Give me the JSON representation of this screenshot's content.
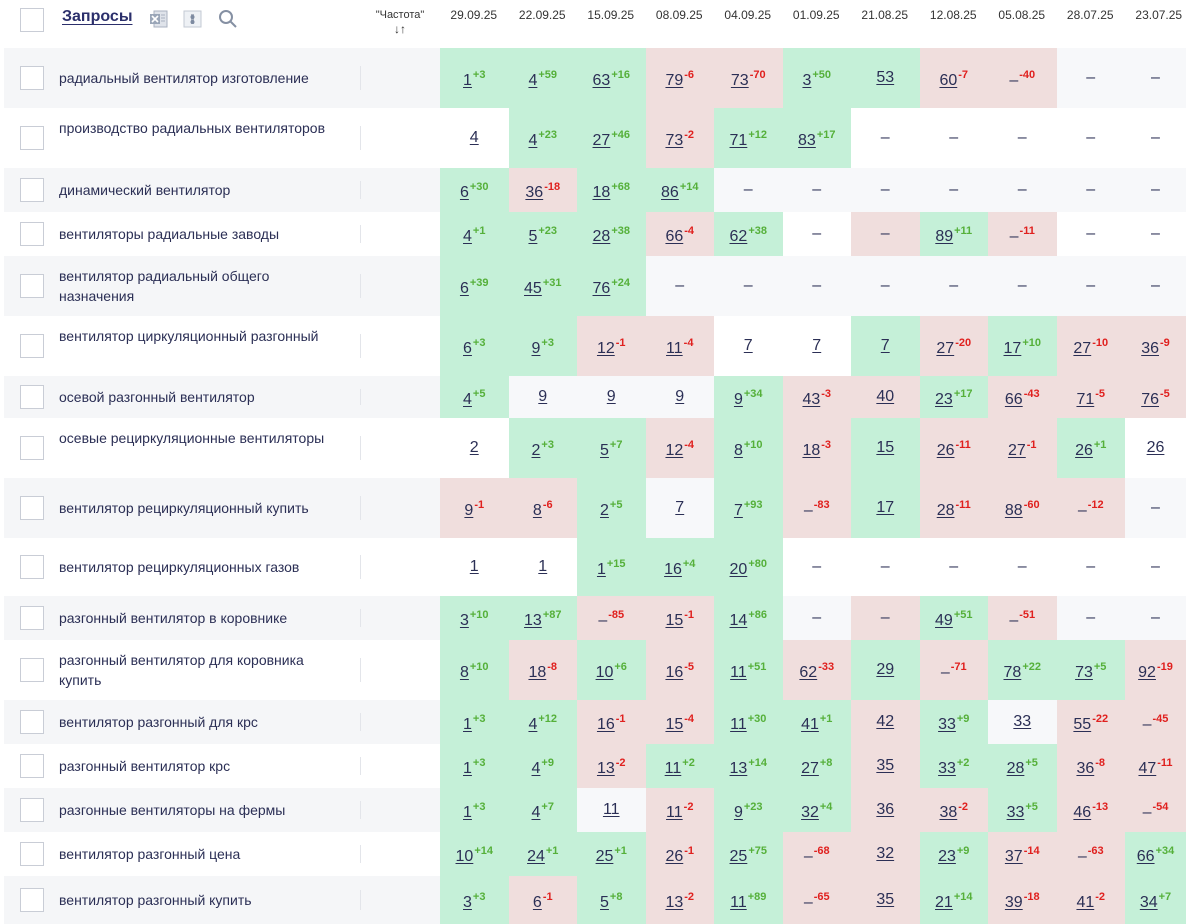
{
  "header": {
    "title": "Запросы",
    "freq_label": "\"Частота\"",
    "sort_glyph": "↓↑",
    "export_icon": "excel-export-icon",
    "settings_icon": "column-settings-icon",
    "search_icon": "search-icon",
    "dates": [
      "29.09.25",
      "22.09.25",
      "15.09.25",
      "08.09.25",
      "04.09.25",
      "01.09.25",
      "21.08.25",
      "12.08.25",
      "05.08.25",
      "28.07.25",
      "23.07.25"
    ]
  },
  "colors": {
    "up": "#55b03a",
    "down": "#e0201e",
    "improved_bg": "#c5f0d8",
    "worsened_bg": "#f0dedd",
    "title": "#2b2f6b"
  },
  "rows": [
    {
      "query": "радиальный вентилятор изготовление",
      "cells": [
        {
          "v": "1",
          "d": "+3",
          "s": "g"
        },
        {
          "v": "4",
          "d": "+59",
          "s": "g"
        },
        {
          "v": "63",
          "d": "+16",
          "s": "g"
        },
        {
          "v": "79",
          "d": "-6",
          "s": "r"
        },
        {
          "v": "73",
          "d": "-70",
          "s": "r"
        },
        {
          "v": "3",
          "d": "+50",
          "s": "g"
        },
        {
          "v": "53",
          "d": "",
          "s": "g"
        },
        {
          "v": "60",
          "d": "-7",
          "s": "r"
        },
        {
          "v": "–",
          "d": "-40",
          "s": "r"
        },
        {
          "v": "–",
          "d": "",
          "s": "w"
        },
        {
          "v": "–",
          "d": "",
          "s": "w"
        }
      ]
    },
    {
      "query": "производство радиальных вентиляторов",
      "cells": [
        {
          "v": "4",
          "d": "",
          "s": "w"
        },
        {
          "v": "4",
          "d": "+23",
          "s": "g"
        },
        {
          "v": "27",
          "d": "+46",
          "s": "g"
        },
        {
          "v": "73",
          "d": "-2",
          "s": "r"
        },
        {
          "v": "71",
          "d": "+12",
          "s": "g"
        },
        {
          "v": "83",
          "d": "+17",
          "s": "g"
        },
        {
          "v": "–",
          "d": "",
          "s": "w"
        },
        {
          "v": "–",
          "d": "",
          "s": "w"
        },
        {
          "v": "–",
          "d": "",
          "s": "w"
        },
        {
          "v": "–",
          "d": "",
          "s": "w"
        },
        {
          "v": "–",
          "d": "",
          "s": "w"
        }
      ]
    },
    {
      "query": "динамический вентилятор",
      "cells": [
        {
          "v": "6",
          "d": "+30",
          "s": "g"
        },
        {
          "v": "36",
          "d": "-18",
          "s": "r"
        },
        {
          "v": "18",
          "d": "+68",
          "s": "g"
        },
        {
          "v": "86",
          "d": "+14",
          "s": "g"
        },
        {
          "v": "–",
          "d": "",
          "s": "w"
        },
        {
          "v": "–",
          "d": "",
          "s": "w"
        },
        {
          "v": "–",
          "d": "",
          "s": "w"
        },
        {
          "v": "–",
          "d": "",
          "s": "w"
        },
        {
          "v": "–",
          "d": "",
          "s": "w"
        },
        {
          "v": "–",
          "d": "",
          "s": "w"
        },
        {
          "v": "–",
          "d": "",
          "s": "w"
        }
      ]
    },
    {
      "query": "вентиляторы радиальные заводы",
      "cells": [
        {
          "v": "4",
          "d": "+1",
          "s": "g"
        },
        {
          "v": "5",
          "d": "+23",
          "s": "g"
        },
        {
          "v": "28",
          "d": "+38",
          "s": "g"
        },
        {
          "v": "66",
          "d": "-4",
          "s": "r"
        },
        {
          "v": "62",
          "d": "+38",
          "s": "g"
        },
        {
          "v": "–",
          "d": "",
          "s": "w"
        },
        {
          "v": "–",
          "d": "",
          "s": "r"
        },
        {
          "v": "89",
          "d": "+11",
          "s": "g"
        },
        {
          "v": "–",
          "d": "-11",
          "s": "r"
        },
        {
          "v": "–",
          "d": "",
          "s": "w"
        },
        {
          "v": "–",
          "d": "",
          "s": "w"
        }
      ]
    },
    {
      "query": "вентилятор радиальный общего назначения",
      "cells": [
        {
          "v": "6",
          "d": "+39",
          "s": "g"
        },
        {
          "v": "45",
          "d": "+31",
          "s": "g"
        },
        {
          "v": "76",
          "d": "+24",
          "s": "g"
        },
        {
          "v": "–",
          "d": "",
          "s": "w"
        },
        {
          "v": "–",
          "d": "",
          "s": "w"
        },
        {
          "v": "–",
          "d": "",
          "s": "w"
        },
        {
          "v": "–",
          "d": "",
          "s": "w"
        },
        {
          "v": "–",
          "d": "",
          "s": "w"
        },
        {
          "v": "–",
          "d": "",
          "s": "w"
        },
        {
          "v": "–",
          "d": "",
          "s": "w"
        },
        {
          "v": "–",
          "d": "",
          "s": "w"
        }
      ]
    },
    {
      "query": "вентилятор циркуляционный разгонный",
      "cells": [
        {
          "v": "6",
          "d": "+3",
          "s": "g"
        },
        {
          "v": "9",
          "d": "+3",
          "s": "g"
        },
        {
          "v": "12",
          "d": "-1",
          "s": "r"
        },
        {
          "v": "11",
          "d": "-4",
          "s": "r"
        },
        {
          "v": "7",
          "d": "",
          "s": "w"
        },
        {
          "v": "7",
          "d": "",
          "s": "w"
        },
        {
          "v": "7",
          "d": "",
          "s": "g"
        },
        {
          "v": "27",
          "d": "-20",
          "s": "r"
        },
        {
          "v": "17",
          "d": "+10",
          "s": "g"
        },
        {
          "v": "27",
          "d": "-10",
          "s": "r"
        },
        {
          "v": "36",
          "d": "-9",
          "s": "r"
        }
      ]
    },
    {
      "query": "осевой разгонный вентилятор",
      "cells": [
        {
          "v": "4",
          "d": "+5",
          "s": "g"
        },
        {
          "v": "9",
          "d": "",
          "s": "w"
        },
        {
          "v": "9",
          "d": "",
          "s": "w"
        },
        {
          "v": "9",
          "d": "",
          "s": "w"
        },
        {
          "v": "9",
          "d": "+34",
          "s": "g"
        },
        {
          "v": "43",
          "d": "-3",
          "s": "r"
        },
        {
          "v": "40",
          "d": "",
          "s": "r"
        },
        {
          "v": "23",
          "d": "+17",
          "s": "g"
        },
        {
          "v": "66",
          "d": "-43",
          "s": "r"
        },
        {
          "v": "71",
          "d": "-5",
          "s": "r"
        },
        {
          "v": "76",
          "d": "-5",
          "s": "r"
        }
      ]
    },
    {
      "query": "осевые рециркуляционные вентиляторы",
      "cells": [
        {
          "v": "2",
          "d": "",
          "s": "w"
        },
        {
          "v": "2",
          "d": "+3",
          "s": "g"
        },
        {
          "v": "5",
          "d": "+7",
          "s": "g"
        },
        {
          "v": "12",
          "d": "-4",
          "s": "r"
        },
        {
          "v": "8",
          "d": "+10",
          "s": "g"
        },
        {
          "v": "18",
          "d": "-3",
          "s": "r"
        },
        {
          "v": "15",
          "d": "",
          "s": "g"
        },
        {
          "v": "26",
          "d": "-11",
          "s": "r"
        },
        {
          "v": "27",
          "d": "-1",
          "s": "r"
        },
        {
          "v": "26",
          "d": "+1",
          "s": "g"
        },
        {
          "v": "26",
          "d": "",
          "s": "w"
        }
      ]
    },
    {
      "query": "вентилятор рециркуляционный купить",
      "cells": [
        {
          "v": "9",
          "d": "-1",
          "s": "r"
        },
        {
          "v": "8",
          "d": "-6",
          "s": "r"
        },
        {
          "v": "2",
          "d": "+5",
          "s": "g"
        },
        {
          "v": "7",
          "d": "",
          "s": "w"
        },
        {
          "v": "7",
          "d": "+93",
          "s": "g"
        },
        {
          "v": "–",
          "d": "-83",
          "s": "r"
        },
        {
          "v": "17",
          "d": "",
          "s": "g"
        },
        {
          "v": "28",
          "d": "-11",
          "s": "r"
        },
        {
          "v": "88",
          "d": "-60",
          "s": "r"
        },
        {
          "v": "–",
          "d": "-12",
          "s": "r"
        },
        {
          "v": "–",
          "d": "",
          "s": "w"
        }
      ]
    },
    {
      "query": "вентилятор рециркуляционных газов",
      "cells": [
        {
          "v": "1",
          "d": "",
          "s": "w"
        },
        {
          "v": "1",
          "d": "",
          "s": "w"
        },
        {
          "v": "1",
          "d": "+15",
          "s": "g"
        },
        {
          "v": "16",
          "d": "+4",
          "s": "g"
        },
        {
          "v": "20",
          "d": "+80",
          "s": "g"
        },
        {
          "v": "–",
          "d": "",
          "s": "w"
        },
        {
          "v": "–",
          "d": "",
          "s": "w"
        },
        {
          "v": "–",
          "d": "",
          "s": "w"
        },
        {
          "v": "–",
          "d": "",
          "s": "w"
        },
        {
          "v": "–",
          "d": "",
          "s": "w"
        },
        {
          "v": "–",
          "d": "",
          "s": "w"
        }
      ]
    },
    {
      "query": "разгонный вентилятор в коровнике",
      "cells": [
        {
          "v": "3",
          "d": "+10",
          "s": "g"
        },
        {
          "v": "13",
          "d": "+87",
          "s": "g"
        },
        {
          "v": "–",
          "d": "-85",
          "s": "r"
        },
        {
          "v": "15",
          "d": "-1",
          "s": "r"
        },
        {
          "v": "14",
          "d": "+86",
          "s": "g"
        },
        {
          "v": "–",
          "d": "",
          "s": "w"
        },
        {
          "v": "–",
          "d": "",
          "s": "r"
        },
        {
          "v": "49",
          "d": "+51",
          "s": "g"
        },
        {
          "v": "–",
          "d": "-51",
          "s": "r"
        },
        {
          "v": "–",
          "d": "",
          "s": "w"
        },
        {
          "v": "–",
          "d": "",
          "s": "w"
        }
      ]
    },
    {
      "query": "разгонный вентилятор для коровника купить",
      "cells": [
        {
          "v": "8",
          "d": "+10",
          "s": "g"
        },
        {
          "v": "18",
          "d": "-8",
          "s": "r"
        },
        {
          "v": "10",
          "d": "+6",
          "s": "g"
        },
        {
          "v": "16",
          "d": "-5",
          "s": "r"
        },
        {
          "v": "11",
          "d": "+51",
          "s": "g"
        },
        {
          "v": "62",
          "d": "-33",
          "s": "r"
        },
        {
          "v": "29",
          "d": "",
          "s": "g"
        },
        {
          "v": "–",
          "d": "-71",
          "s": "r"
        },
        {
          "v": "78",
          "d": "+22",
          "s": "g"
        },
        {
          "v": "73",
          "d": "+5",
          "s": "g"
        },
        {
          "v": "92",
          "d": "-19",
          "s": "r"
        }
      ]
    },
    {
      "query": "вентилятор разгонный для крс",
      "cells": [
        {
          "v": "1",
          "d": "+3",
          "s": "g"
        },
        {
          "v": "4",
          "d": "+12",
          "s": "g"
        },
        {
          "v": "16",
          "d": "-1",
          "s": "r"
        },
        {
          "v": "15",
          "d": "-4",
          "s": "r"
        },
        {
          "v": "11",
          "d": "+30",
          "s": "g"
        },
        {
          "v": "41",
          "d": "+1",
          "s": "g"
        },
        {
          "v": "42",
          "d": "",
          "s": "r"
        },
        {
          "v": "33",
          "d": "+9",
          "s": "g"
        },
        {
          "v": "33",
          "d": "",
          "s": "w"
        },
        {
          "v": "55",
          "d": "-22",
          "s": "r"
        },
        {
          "v": "–",
          "d": "-45",
          "s": "r"
        }
      ]
    },
    {
      "query": "разгонный вентилятор крс",
      "cells": [
        {
          "v": "1",
          "d": "+3",
          "s": "g"
        },
        {
          "v": "4",
          "d": "+9",
          "s": "g"
        },
        {
          "v": "13",
          "d": "-2",
          "s": "r"
        },
        {
          "v": "11",
          "d": "+2",
          "s": "g"
        },
        {
          "v": "13",
          "d": "+14",
          "s": "g"
        },
        {
          "v": "27",
          "d": "+8",
          "s": "g"
        },
        {
          "v": "35",
          "d": "",
          "s": "r"
        },
        {
          "v": "33",
          "d": "+2",
          "s": "g"
        },
        {
          "v": "28",
          "d": "+5",
          "s": "g"
        },
        {
          "v": "36",
          "d": "-8",
          "s": "r"
        },
        {
          "v": "47",
          "d": "-11",
          "s": "r"
        }
      ]
    },
    {
      "query": "разгонные вентиляторы на фермы",
      "cells": [
        {
          "v": "1",
          "d": "+3",
          "s": "g"
        },
        {
          "v": "4",
          "d": "+7",
          "s": "g"
        },
        {
          "v": "11",
          "d": "",
          "s": "w"
        },
        {
          "v": "11",
          "d": "-2",
          "s": "r"
        },
        {
          "v": "9",
          "d": "+23",
          "s": "g"
        },
        {
          "v": "32",
          "d": "+4",
          "s": "g"
        },
        {
          "v": "36",
          "d": "",
          "s": "r"
        },
        {
          "v": "38",
          "d": "-2",
          "s": "r"
        },
        {
          "v": "33",
          "d": "+5",
          "s": "g"
        },
        {
          "v": "46",
          "d": "-13",
          "s": "r"
        },
        {
          "v": "–",
          "d": "-54",
          "s": "r"
        }
      ]
    },
    {
      "query": "вентилятор разгонный цена",
      "cells": [
        {
          "v": "10",
          "d": "+14",
          "s": "g"
        },
        {
          "v": "24",
          "d": "+1",
          "s": "g"
        },
        {
          "v": "25",
          "d": "+1",
          "s": "g"
        },
        {
          "v": "26",
          "d": "-1",
          "s": "r"
        },
        {
          "v": "25",
          "d": "+75",
          "s": "g"
        },
        {
          "v": "–",
          "d": "-68",
          "s": "r"
        },
        {
          "v": "32",
          "d": "",
          "s": "r"
        },
        {
          "v": "23",
          "d": "+9",
          "s": "g"
        },
        {
          "v": "37",
          "d": "-14",
          "s": "r"
        },
        {
          "v": "–",
          "d": "-63",
          "s": "r"
        },
        {
          "v": "66",
          "d": "+34",
          "s": "g"
        }
      ]
    },
    {
      "query": "вентилятор разгонный купить",
      "cells": [
        {
          "v": "3",
          "d": "+3",
          "s": "g"
        },
        {
          "v": "6",
          "d": "-1",
          "s": "r"
        },
        {
          "v": "5",
          "d": "+8",
          "s": "g"
        },
        {
          "v": "13",
          "d": "-2",
          "s": "r"
        },
        {
          "v": "11",
          "d": "+89",
          "s": "g"
        },
        {
          "v": "–",
          "d": "-65",
          "s": "r"
        },
        {
          "v": "35",
          "d": "",
          "s": "r"
        },
        {
          "v": "21",
          "d": "+14",
          "s": "g"
        },
        {
          "v": "39",
          "d": "-18",
          "s": "r"
        },
        {
          "v": "41",
          "d": "-2",
          "s": "r"
        },
        {
          "v": "34",
          "d": "+7",
          "s": "g"
        }
      ]
    }
  ]
}
